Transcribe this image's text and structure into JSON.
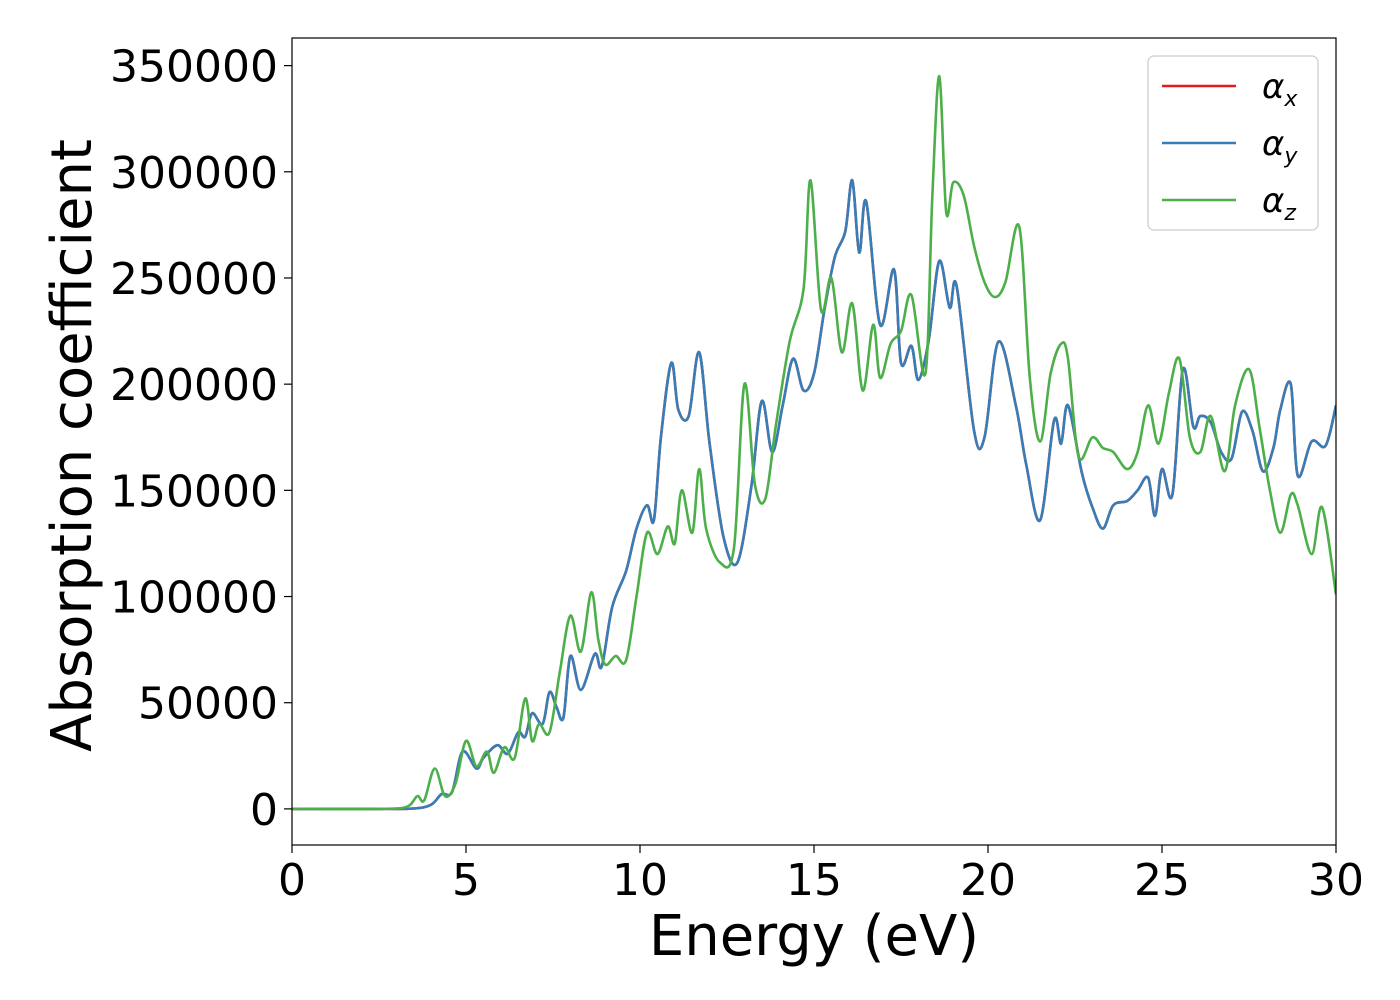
{
  "chart_data": {
    "type": "line",
    "title": "",
    "xlabel": "Energy (eV)",
    "ylabel": "Absorption coefficient",
    "xlim": [
      0,
      30
    ],
    "ylim": [
      -17000,
      363000
    ],
    "xticks": [
      0,
      5,
      10,
      15,
      20,
      25,
      30
    ],
    "xtick_labels": [
      "0",
      "5",
      "10",
      "15",
      "20",
      "25",
      "30"
    ],
    "yticks": [
      0,
      50000,
      100000,
      150000,
      200000,
      250000,
      300000,
      350000
    ],
    "ytick_labels": [
      "0",
      "50000",
      "100000",
      "150000",
      "200000",
      "250000",
      "300000",
      "350000"
    ],
    "grid": false,
    "legend": {
      "placement": "top-right",
      "entries": [
        {
          "symbol": "α",
          "sub": "x",
          "color": "#e41a1c"
        },
        {
          "symbol": "α",
          "sub": "y",
          "color": "#377eb8"
        },
        {
          "symbol": "α",
          "sub": "z",
          "color": "#4daf4a"
        }
      ]
    },
    "series": [
      {
        "color": "#e41a1c",
        "x": [
          0,
          2.5,
          3.5,
          4.0,
          4.3,
          4.6,
          4.9,
          5.3,
          5.5,
          5.9,
          6.2,
          6.5,
          6.7,
          6.9,
          7.2,
          7.4,
          7.6,
          7.8,
          8.0,
          8.3,
          8.7,
          8.9,
          9.2,
          9.6,
          9.9,
          10.2,
          10.4,
          10.6,
          10.9,
          11.1,
          11.4,
          11.7,
          12.0,
          12.4,
          12.8,
          13.2,
          13.5,
          13.8,
          14.1,
          14.4,
          14.7,
          15.0,
          15.3,
          15.6,
          15.9,
          16.1,
          16.3,
          16.5,
          16.9,
          17.3,
          17.5,
          17.8,
          18.0,
          18.3,
          18.6,
          18.9,
          19.1,
          19.6,
          19.9,
          20.3,
          20.8,
          21.1,
          21.5,
          21.9,
          22.1,
          22.3,
          22.7,
          23.0,
          23.3,
          23.6,
          24.0,
          24.3,
          24.6,
          24.8,
          25.0,
          25.3,
          25.6,
          25.9,
          26.1,
          26.4,
          26.7,
          27.0,
          27.3,
          27.6,
          27.9,
          28.2,
          28.4,
          28.7,
          28.9,
          29.3,
          29.7,
          30.0
        ],
        "y": [
          0,
          0,
          200,
          2000,
          7000,
          8000,
          27000,
          19000,
          24000,
          30000,
          26000,
          36000,
          34000,
          45000,
          40000,
          55000,
          48000,
          43000,
          72000,
          56000,
          73000,
          67000,
          95000,
          112000,
          132000,
          143000,
          136000,
          175000,
          210000,
          188000,
          185000,
          215000,
          172000,
          128000,
          116000,
          152000,
          192000,
          168000,
          190000,
          212000,
          197000,
          205000,
          235000,
          260000,
          272000,
          296000,
          262000,
          286000,
          228000,
          254000,
          210000,
          218000,
          202000,
          221000,
          258000,
          236000,
          246000,
          178000,
          175000,
          220000,
          190000,
          162000,
          136000,
          183000,
          172000,
          190000,
          158000,
          142000,
          132000,
          143000,
          145000,
          150000,
          156000,
          138000,
          160000,
          148000,
          207000,
          180000,
          185000,
          182000,
          168000,
          165000,
          187000,
          178000,
          159000,
          170000,
          188000,
          200000,
          157000,
          173000,
          171000,
          190000
        ]
      },
      {
        "color": "#377eb8",
        "x": [
          0,
          2.5,
          3.5,
          4.0,
          4.3,
          4.6,
          4.9,
          5.3,
          5.5,
          5.9,
          6.2,
          6.5,
          6.7,
          6.9,
          7.2,
          7.4,
          7.6,
          7.8,
          8.0,
          8.3,
          8.7,
          8.9,
          9.2,
          9.6,
          9.9,
          10.2,
          10.4,
          10.6,
          10.9,
          11.1,
          11.4,
          11.7,
          12.0,
          12.4,
          12.8,
          13.2,
          13.5,
          13.8,
          14.1,
          14.4,
          14.7,
          15.0,
          15.3,
          15.6,
          15.9,
          16.1,
          16.3,
          16.5,
          16.9,
          17.3,
          17.5,
          17.8,
          18.0,
          18.3,
          18.6,
          18.9,
          19.1,
          19.6,
          19.9,
          20.3,
          20.8,
          21.1,
          21.5,
          21.9,
          22.1,
          22.3,
          22.7,
          23.0,
          23.3,
          23.6,
          24.0,
          24.3,
          24.6,
          24.8,
          25.0,
          25.3,
          25.6,
          25.9,
          26.1,
          26.4,
          26.7,
          27.0,
          27.3,
          27.6,
          27.9,
          28.2,
          28.4,
          28.7,
          28.9,
          29.3,
          29.7,
          30.0
        ],
        "y": [
          0,
          0,
          200,
          2000,
          7000,
          8000,
          27000,
          19000,
          24000,
          30000,
          26000,
          36000,
          34000,
          45000,
          40000,
          55000,
          48000,
          43000,
          72000,
          56000,
          73000,
          67000,
          95000,
          112000,
          132000,
          143000,
          136000,
          175000,
          210000,
          188000,
          185000,
          215000,
          172000,
          128000,
          116000,
          152000,
          192000,
          168000,
          190000,
          212000,
          197000,
          205000,
          235000,
          260000,
          272000,
          296000,
          262000,
          286000,
          228000,
          254000,
          210000,
          218000,
          202000,
          221000,
          258000,
          236000,
          246000,
          178000,
          175000,
          220000,
          190000,
          162000,
          136000,
          183000,
          172000,
          190000,
          158000,
          142000,
          132000,
          143000,
          145000,
          150000,
          156000,
          138000,
          160000,
          148000,
          207000,
          180000,
          185000,
          182000,
          168000,
          165000,
          187000,
          178000,
          159000,
          170000,
          188000,
          200000,
          157000,
          173000,
          171000,
          190000
        ]
      },
      {
        "color": "#4daf4a",
        "x": [
          0,
          2.5,
          3.3,
          3.6,
          3.8,
          4.1,
          4.4,
          4.7,
          5.0,
          5.3,
          5.6,
          5.8,
          6.1,
          6.4,
          6.7,
          6.9,
          7.1,
          7.4,
          7.7,
          8.0,
          8.3,
          8.6,
          8.8,
          9.0,
          9.3,
          9.6,
          9.9,
          10.2,
          10.5,
          10.8,
          11.0,
          11.2,
          11.5,
          11.7,
          11.9,
          12.3,
          12.7,
          13.0,
          13.3,
          13.6,
          13.9,
          14.3,
          14.7,
          14.9,
          15.2,
          15.5,
          15.8,
          16.1,
          16.4,
          16.7,
          16.9,
          17.2,
          17.5,
          17.8,
          18.2,
          18.4,
          18.6,
          18.8,
          19.0,
          19.3,
          19.6,
          19.9,
          20.2,
          20.5,
          20.9,
          21.2,
          21.5,
          21.8,
          22.1,
          22.3,
          22.6,
          23.0,
          23.3,
          23.6,
          24.0,
          24.3,
          24.6,
          24.9,
          25.2,
          25.5,
          25.8,
          26.1,
          26.4,
          26.8,
          27.1,
          27.5,
          27.8,
          28.1,
          28.4,
          28.7,
          28.9,
          29.3,
          29.6,
          30.0
        ],
        "y": [
          0,
          0,
          1000,
          6000,
          4000,
          19000,
          6000,
          12000,
          32000,
          20000,
          27000,
          17000,
          29000,
          24000,
          52000,
          32000,
          40000,
          36000,
          65000,
          91000,
          74000,
          102000,
          80000,
          68000,
          72000,
          70000,
          100000,
          130000,
          120000,
          133000,
          125000,
          150000,
          130000,
          160000,
          132000,
          116000,
          123000,
          200000,
          153000,
          146000,
          180000,
          220000,
          245000,
          296000,
          235000,
          250000,
          215000,
          238000,
          197000,
          228000,
          203000,
          219000,
          225000,
          242000,
          205000,
          288000,
          345000,
          281000,
          295000,
          289000,
          265000,
          248000,
          241000,
          248000,
          274000,
          203000,
          173000,
          205000,
          219000,
          212000,
          166000,
          175000,
          170000,
          168000,
          160000,
          168000,
          190000,
          172000,
          196000,
          212000,
          175000,
          168000,
          185000,
          159000,
          190000,
          207000,
          180000,
          150000,
          130000,
          148000,
          143000,
          120000,
          142000,
          101000
        ]
      }
    ]
  }
}
